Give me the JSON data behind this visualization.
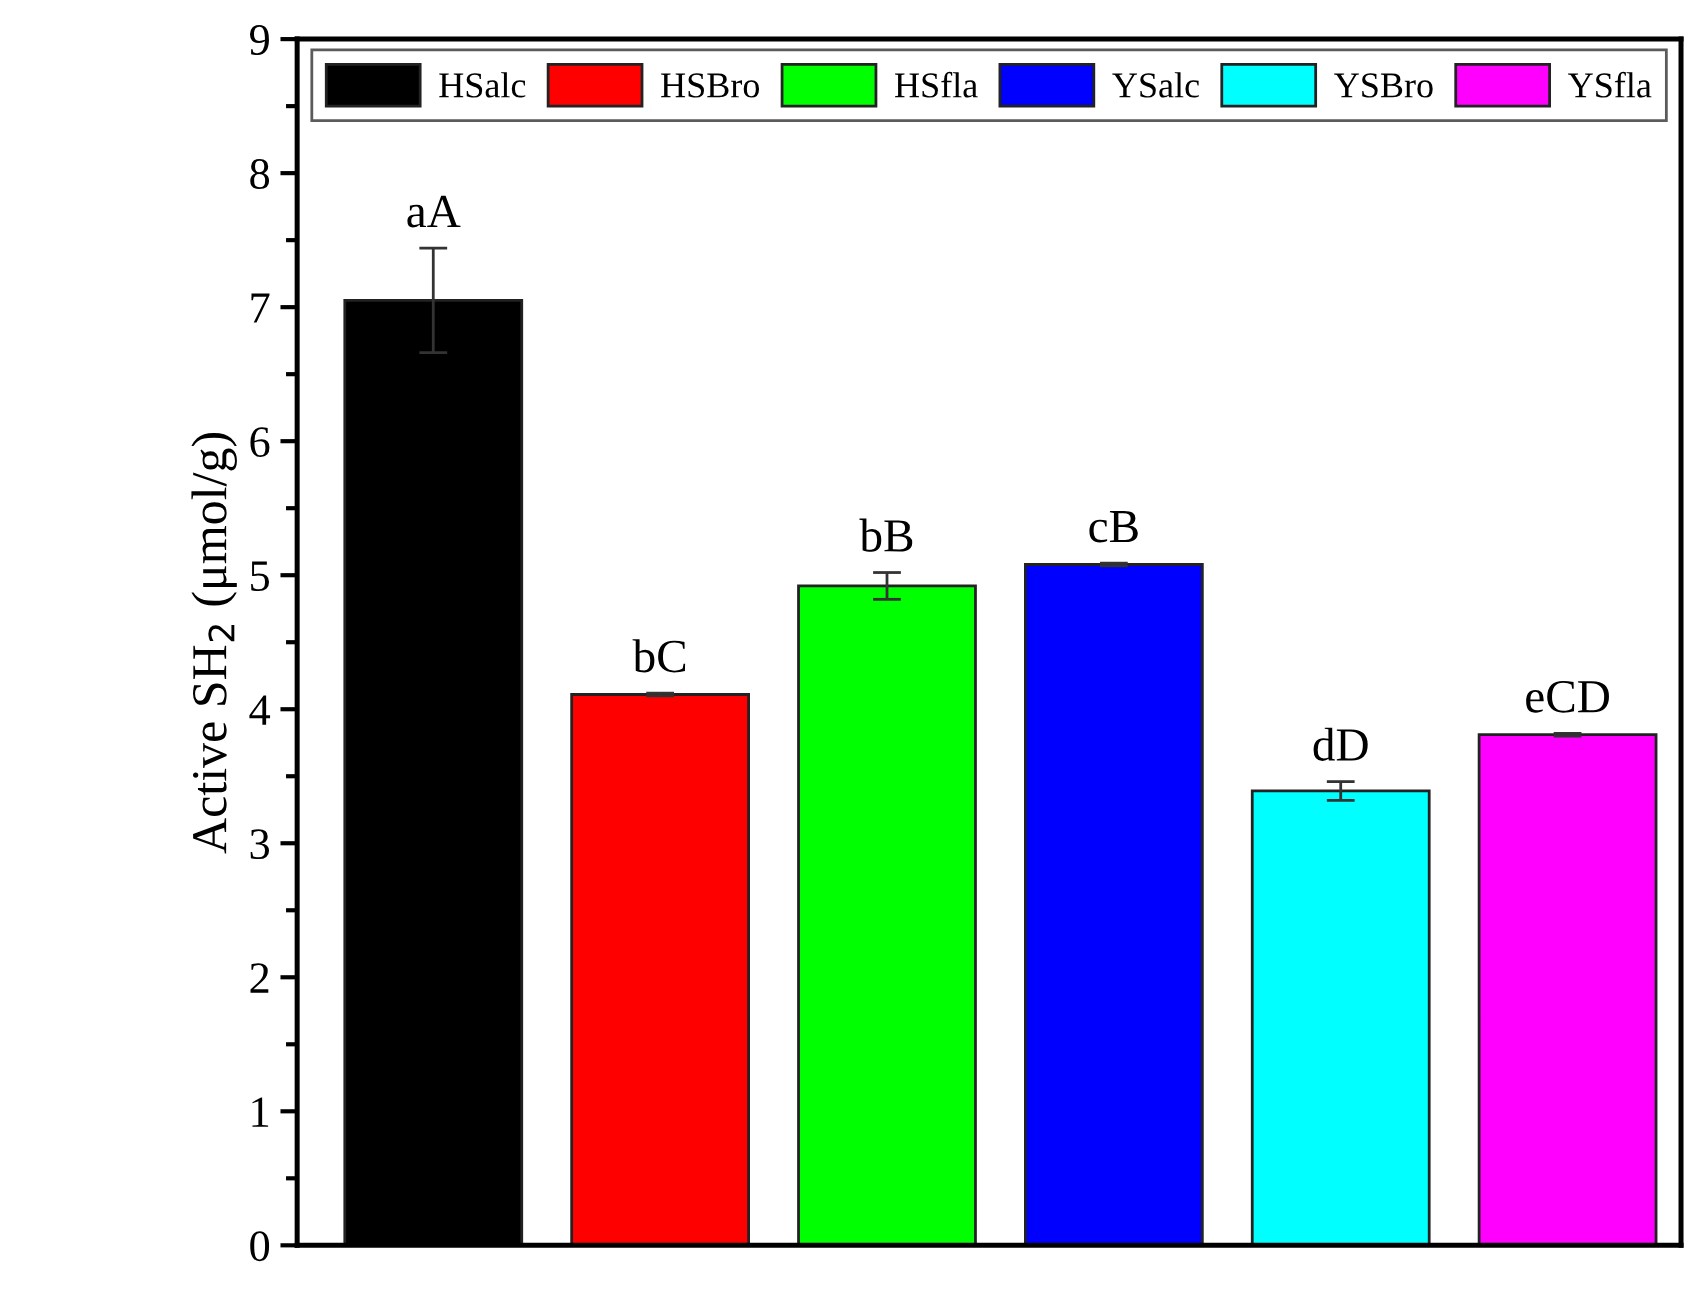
{
  "chart_data": {
    "type": "bar",
    "ylabel": "Active SH$_{2}$ (μmol/g)",
    "categories": [
      null,
      null,
      null,
      null,
      null,
      null
    ],
    "series": [
      {
        "name": "HSalc",
        "color": "#000000",
        "values": [
          7.05,
          null,
          null,
          null,
          null,
          null
        ],
        "errors": [
          0.39,
          null,
          null,
          null,
          null,
          null
        ],
        "value_labels": [
          "aA",
          null,
          null,
          null,
          null,
          null
        ]
      },
      {
        "name": "HSBro",
        "color": "#ff0000",
        "values": [
          null,
          4.11,
          null,
          null,
          null,
          null
        ],
        "errors": [
          null,
          0.01,
          null,
          null,
          null,
          null
        ],
        "value_labels": [
          null,
          "bC",
          null,
          null,
          null,
          null
        ]
      },
      {
        "name": "HSfla",
        "color": "#00ff00",
        "values": [
          null,
          null,
          4.92,
          null,
          null,
          null
        ],
        "errors": [
          null,
          null,
          0.1,
          null,
          null,
          null
        ],
        "value_labels": [
          null,
          null,
          "bB",
          null,
          null,
          null
        ]
      },
      {
        "name": "YSalc",
        "color": "#0000ff",
        "values": [
          null,
          null,
          null,
          5.08,
          null,
          null
        ],
        "errors": [
          null,
          null,
          null,
          0.01,
          null,
          null
        ],
        "value_labels": [
          null,
          null,
          null,
          "cB",
          null,
          null
        ]
      },
      {
        "name": "YSBro",
        "color": "#00ffff",
        "values": [
          null,
          null,
          null,
          null,
          3.39,
          null
        ],
        "errors": [
          null,
          null,
          null,
          null,
          0.07,
          null
        ],
        "value_labels": [
          null,
          null,
          null,
          null,
          "dD",
          null
        ]
      },
      {
        "name": "YSfla",
        "color": "#ff00ff",
        "values": [
          null,
          null,
          null,
          null,
          null,
          3.81
        ],
        "errors": [
          null,
          null,
          null,
          null,
          null,
          0.01
        ],
        "value_labels": [
          null,
          null,
          null,
          null,
          null,
          "eCD"
        ]
      }
    ],
    "ylim": [
      0,
      9
    ],
    "yticks": [
      0,
      1,
      2,
      3,
      4,
      5,
      6,
      7,
      8,
      9
    ],
    "legend": "top",
    "grid": false,
    "tick_labels": "y"
  }
}
